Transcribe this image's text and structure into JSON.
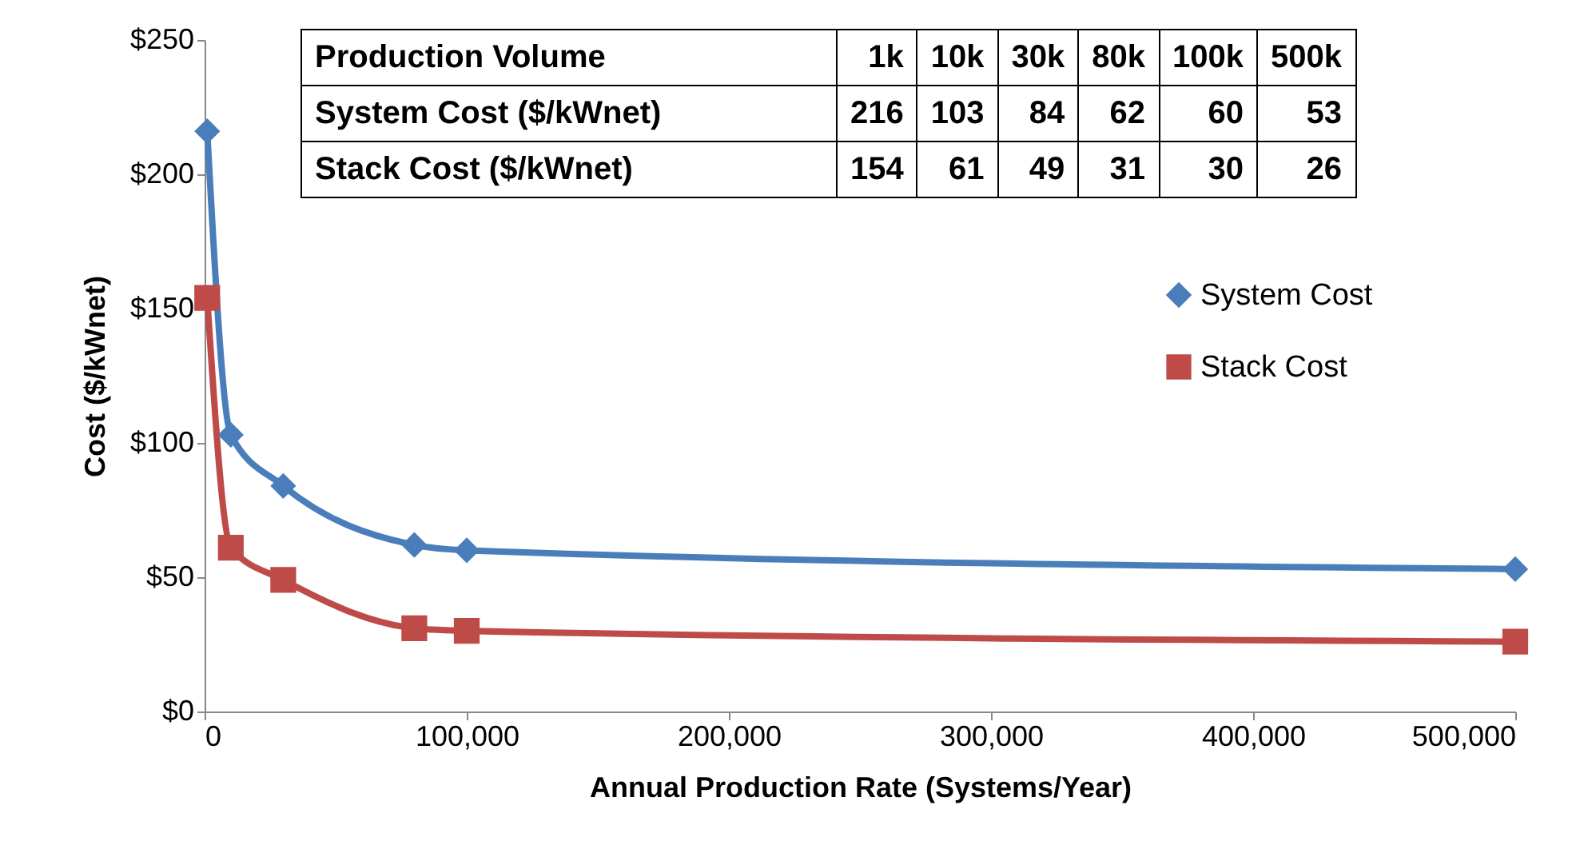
{
  "chart_data": {
    "type": "line",
    "xlabel": "Annual Production Rate (Systems/Year)",
    "ylabel": "Cost ($/kWnet)",
    "x": [
      1000,
      10000,
      30000,
      80000,
      100000,
      500000
    ],
    "series": [
      {
        "name": "System Cost",
        "color": "#4a7ebb",
        "marker": "diamond",
        "values": [
          216,
          103,
          84,
          62,
          60,
          53
        ]
      },
      {
        "name": "Stack Cost",
        "color": "#be4b48",
        "marker": "square",
        "values": [
          154,
          61,
          49,
          31,
          30,
          26
        ]
      }
    ],
    "xlim": [
      0,
      500000
    ],
    "xticks": [
      0,
      {
        "value": 100000,
        "label": "100,000"
      },
      {
        "value": 200000,
        "label": "200,000"
      },
      {
        "value": 300000,
        "label": "300,000"
      },
      {
        "value": 400000,
        "label": "400,000"
      },
      {
        "value": 500000,
        "label": "500,000"
      }
    ],
    "ylim": [
      0,
      250
    ],
    "yticks": [
      {
        "value": 0,
        "label": "$0"
      },
      {
        "value": 50,
        "label": "$50"
      },
      {
        "value": 100,
        "label": "$100"
      },
      {
        "value": 150,
        "label": "$150"
      },
      {
        "value": 200,
        "label": "$200"
      },
      {
        "value": 250,
        "label": "$250"
      }
    ],
    "legend": "right",
    "annotations": [
      "Production Volume",
      "1k",
      "10k",
      "30k",
      "80k",
      "100k",
      "500k",
      "System Cost ($/kWnet)",
      "216",
      "103",
      "84",
      "62",
      "60",
      "53",
      "Stack Cost ($/kWnet)",
      "154",
      "61",
      "49",
      "31",
      "30",
      "26"
    ]
  }
}
